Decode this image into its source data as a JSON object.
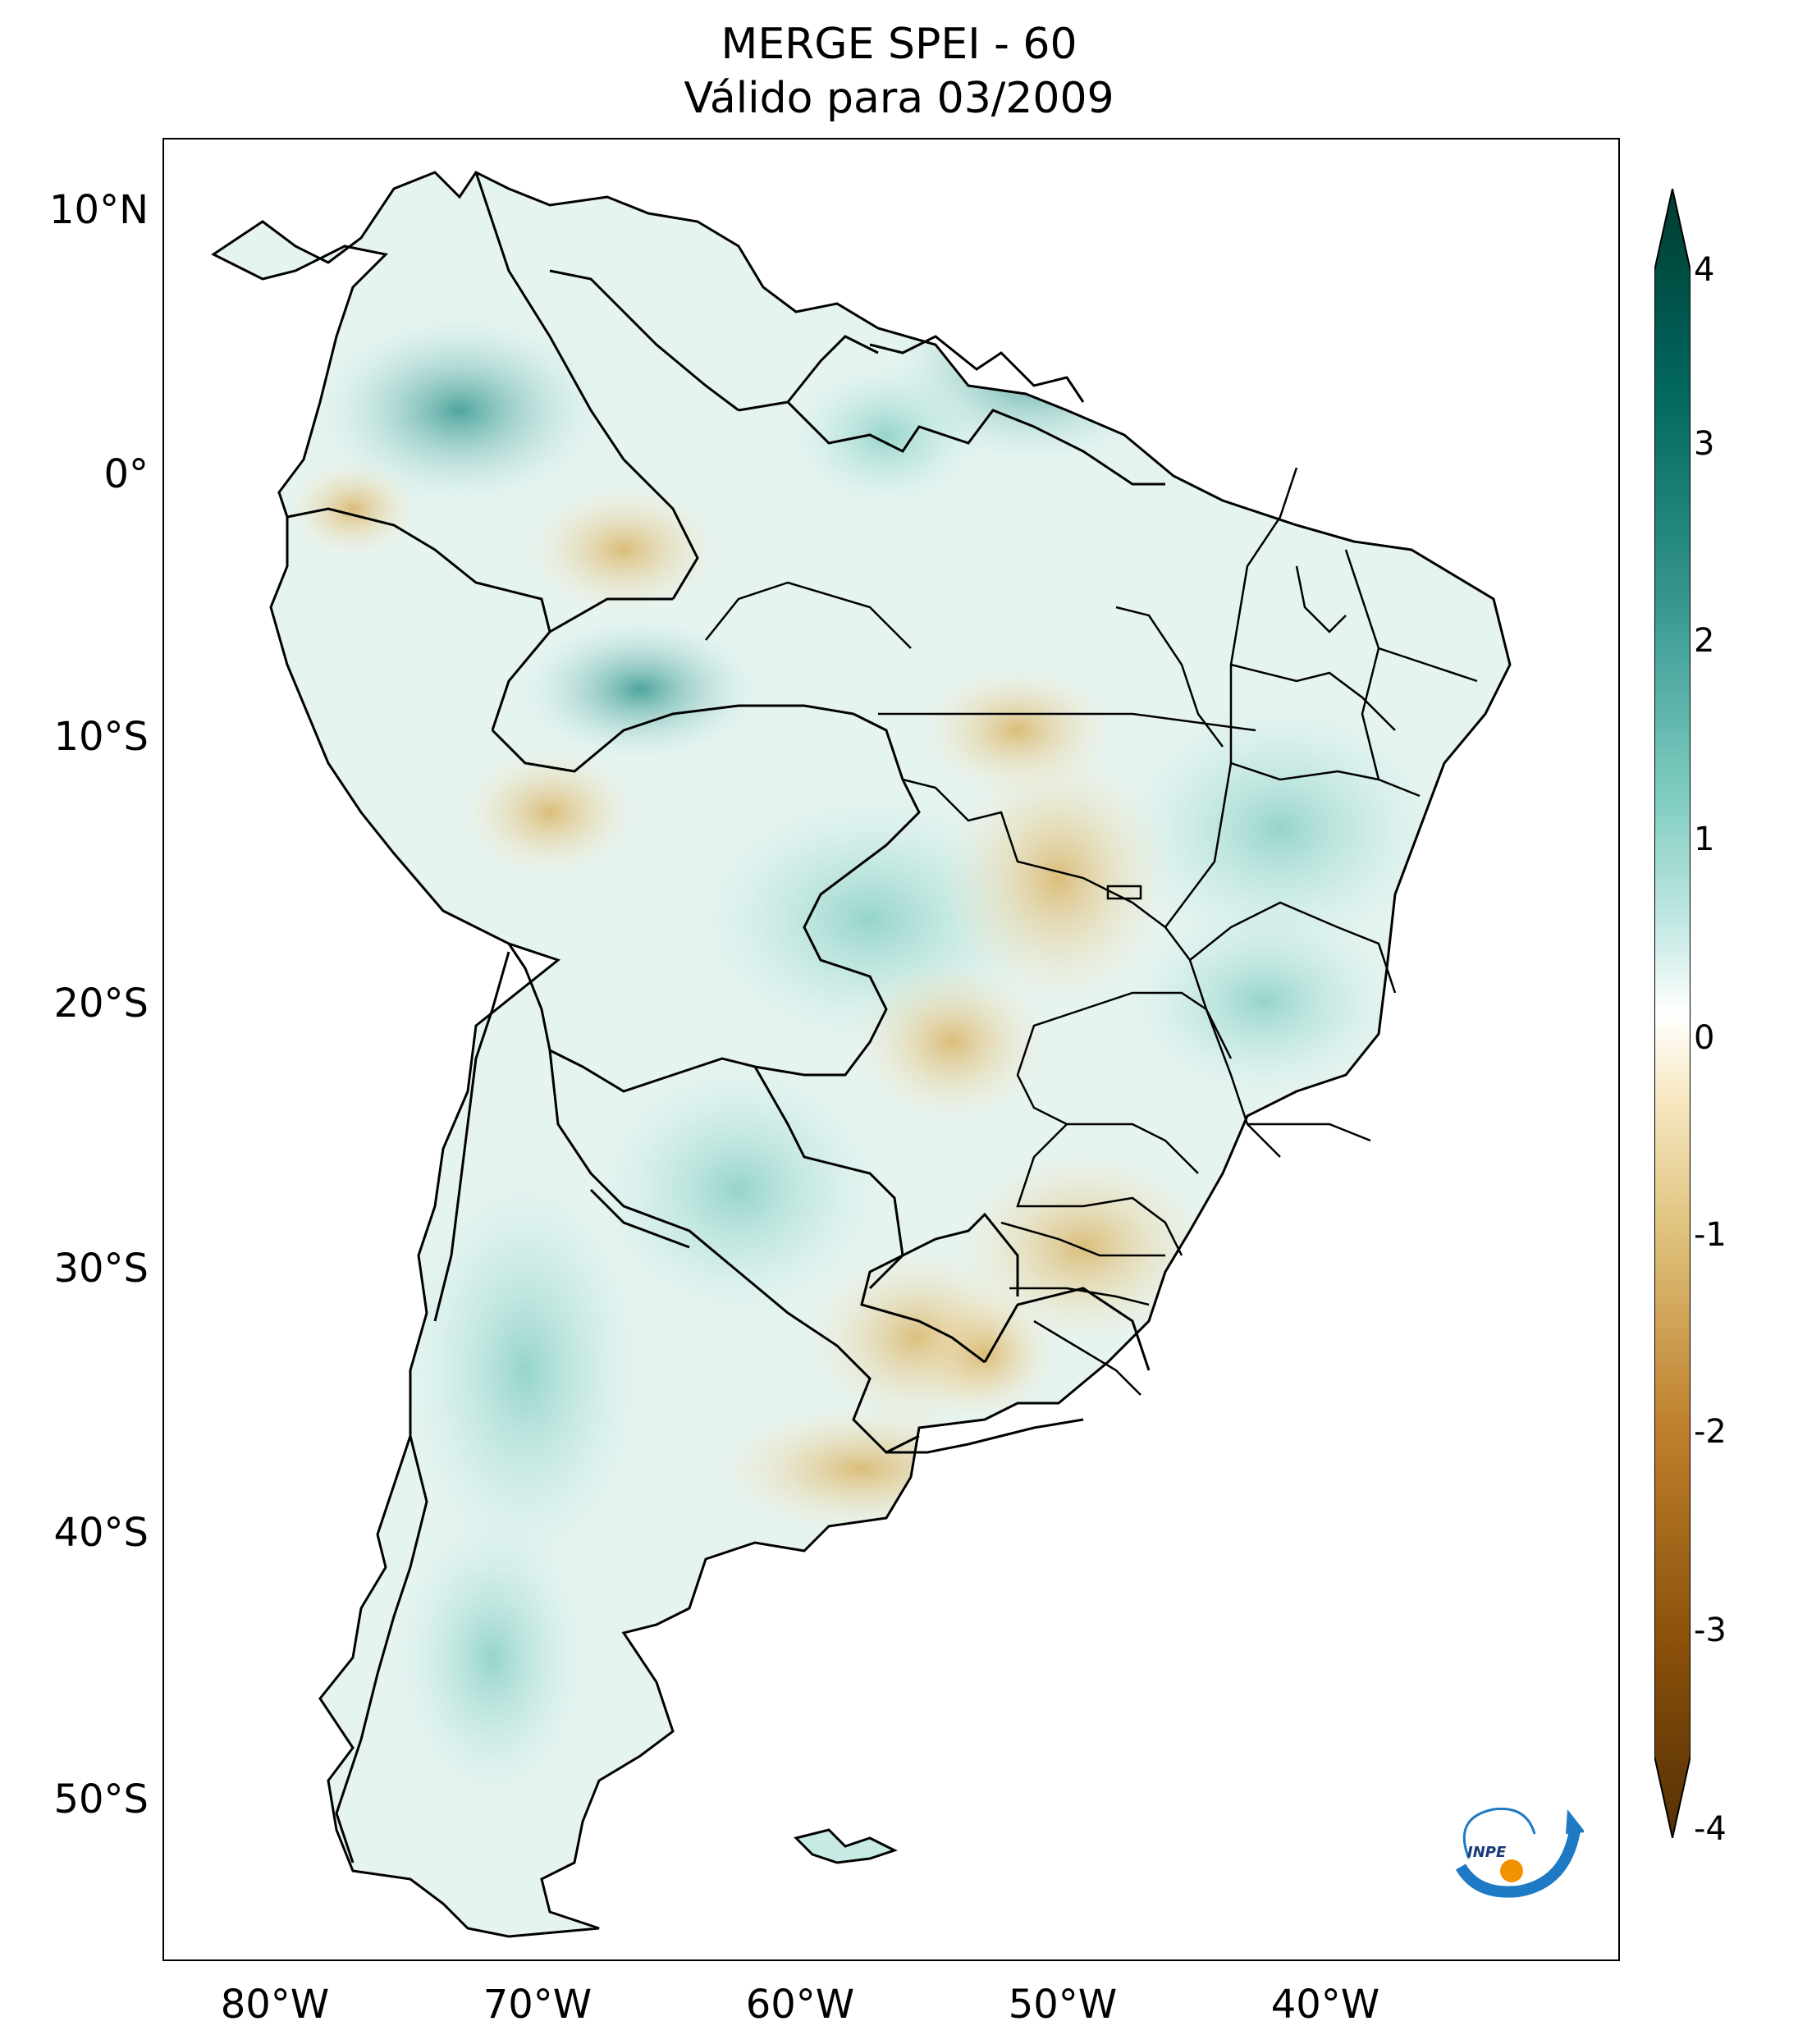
{
  "title": "MERGE   SPEI - 60",
  "subtitle": "Válido para 03/2009",
  "lat_ticks": [
    "10°N",
    "0°",
    "10°S",
    "20°S",
    "30°S",
    "40°S",
    "50°S"
  ],
  "lon_ticks": [
    "80°W",
    "70°W",
    "60°W",
    "50°W",
    "40°W"
  ],
  "colorbar": {
    "ticks": [
      "4",
      "3",
      "2",
      "1",
      "0",
      "-1",
      "-2",
      "-3",
      "-4"
    ],
    "min": -4,
    "max": 4,
    "extend": "both",
    "colors": {
      "pos_max": "#003c30",
      "pos_mid": "#35978f",
      "pos_low": "#c7eae5",
      "zero": "#ffffff",
      "neg_low": "#f6e8c3",
      "neg_mid": "#bf812d",
      "neg_max": "#543005"
    }
  },
  "logo_text": "INPE"
}
